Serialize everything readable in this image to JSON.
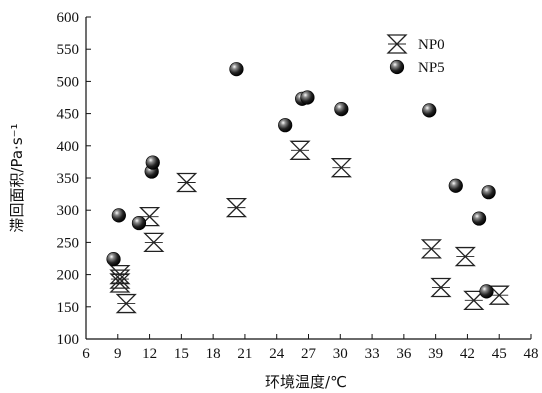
{
  "chart_data": {
    "type": "scatter",
    "title": "",
    "xlabel": "环境温度/℃",
    "ylabel": "滞回面积/Pa·s⁻¹",
    "xlim": [
      6,
      48
    ],
    "ylim": [
      100,
      600
    ],
    "xticks": [
      6,
      9,
      12,
      15,
      18,
      21,
      24,
      27,
      30,
      33,
      36,
      39,
      42,
      45,
      48
    ],
    "yticks": [
      100,
      150,
      200,
      250,
      300,
      350,
      400,
      450,
      500,
      550,
      600
    ],
    "grid": false,
    "legend_position": "top-right",
    "series": [
      {
        "name": "NP0",
        "marker": "cross-x",
        "color": "#222222",
        "x": [
          9.2,
          9.2,
          9.2,
          9.8,
          12.0,
          12.4,
          15.5,
          20.2,
          26.2,
          30.1,
          38.6,
          39.5,
          41.8,
          42.6,
          45.0
        ],
        "y": [
          200,
          193,
          187,
          155,
          290,
          250,
          343,
          304,
          393,
          366,
          240,
          180,
          228,
          160,
          168
        ]
      },
      {
        "name": "NP5",
        "marker": "sphere",
        "color": "#111111",
        "x": [
          8.6,
          9.1,
          11.0,
          12.2,
          12.3,
          20.2,
          24.8,
          26.4,
          26.9,
          30.1,
          38.4,
          40.9,
          43.1,
          43.8,
          44.0
        ],
        "y": [
          224,
          292,
          280,
          360,
          374,
          519,
          432,
          473,
          475,
          457,
          455,
          338,
          287,
          174,
          328
        ]
      }
    ]
  }
}
